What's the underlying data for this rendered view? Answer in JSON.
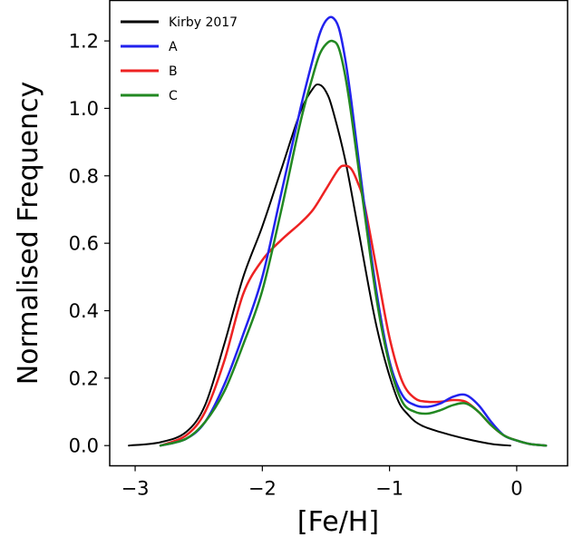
{
  "chart_data": {
    "type": "line",
    "xlabel": "[Fe/H]",
    "ylabel": "Normalised Frequency",
    "xlim": [
      -3.2,
      0.4
    ],
    "ylim": [
      -0.06,
      1.32
    ],
    "grid": false,
    "legend_position": "top-left",
    "x_ticks": [
      {
        "value": -3,
        "label": "−3"
      },
      {
        "value": -2,
        "label": "−2"
      },
      {
        "value": -1,
        "label": "−1"
      },
      {
        "value": 0,
        "label": "0"
      }
    ],
    "y_ticks": [
      {
        "value": 0.0,
        "label": "0.0"
      },
      {
        "value": 0.2,
        "label": "0.2"
      },
      {
        "value": 0.4,
        "label": "0.4"
      },
      {
        "value": 0.6,
        "label": "0.6"
      },
      {
        "value": 0.8,
        "label": "0.8"
      },
      {
        "value": 1.0,
        "label": "1.0"
      },
      {
        "value": 1.2,
        "label": "1.2"
      }
    ],
    "series": [
      {
        "name": "Kirby 2017",
        "color": "#000000",
        "width": 2,
        "x": [
          -3.05,
          -2.8,
          -2.6,
          -2.45,
          -2.3,
          -2.15,
          -2.0,
          -1.85,
          -1.7,
          -1.6,
          -1.55,
          -1.5,
          -1.45,
          -1.35,
          -1.25,
          -1.1,
          -0.95,
          -0.85,
          -0.75,
          -0.6,
          -0.4,
          -0.2,
          -0.05
        ],
        "y": [
          0.0,
          0.01,
          0.04,
          0.12,
          0.3,
          0.5,
          0.65,
          0.82,
          0.99,
          1.06,
          1.07,
          1.05,
          1.0,
          0.85,
          0.65,
          0.35,
          0.15,
          0.09,
          0.06,
          0.04,
          0.02,
          0.005,
          0.0
        ]
      },
      {
        "name": "A",
        "color": "#2222ee",
        "width": 2.5,
        "x": [
          -2.8,
          -2.6,
          -2.45,
          -2.3,
          -2.15,
          -2.0,
          -1.85,
          -1.7,
          -1.6,
          -1.55,
          -1.5,
          -1.45,
          -1.4,
          -1.35,
          -1.3,
          -1.2,
          -1.1,
          -1.0,
          -0.9,
          -0.8,
          -0.7,
          -0.6,
          -0.5,
          -0.4,
          -0.3,
          -0.2,
          -0.1,
          0.0,
          0.1,
          0.23
        ],
        "y": [
          0.0,
          0.02,
          0.07,
          0.18,
          0.33,
          0.5,
          0.75,
          1.0,
          1.15,
          1.22,
          1.26,
          1.27,
          1.24,
          1.15,
          1.02,
          0.72,
          0.45,
          0.25,
          0.15,
          0.12,
          0.115,
          0.125,
          0.145,
          0.15,
          0.12,
          0.07,
          0.03,
          0.015,
          0.005,
          0.0
        ]
      },
      {
        "name": "B",
        "color": "#ee2222",
        "width": 2.5,
        "x": [
          -2.8,
          -2.6,
          -2.45,
          -2.3,
          -2.15,
          -2.0,
          -1.85,
          -1.7,
          -1.6,
          -1.5,
          -1.4,
          -1.35,
          -1.3,
          -1.25,
          -1.2,
          -1.1,
          -1.0,
          -0.9,
          -0.8,
          -0.7,
          -0.6,
          -0.5,
          -0.4,
          -0.3,
          -0.2,
          -0.1,
          0.0,
          0.1,
          0.23
        ],
        "y": [
          0.0,
          0.03,
          0.1,
          0.25,
          0.45,
          0.55,
          0.61,
          0.66,
          0.7,
          0.76,
          0.82,
          0.83,
          0.82,
          0.78,
          0.72,
          0.52,
          0.32,
          0.19,
          0.14,
          0.13,
          0.13,
          0.135,
          0.13,
          0.1,
          0.06,
          0.03,
          0.015,
          0.005,
          0.0
        ]
      },
      {
        "name": "C",
        "color": "#228822",
        "width": 2.5,
        "x": [
          -2.8,
          -2.6,
          -2.45,
          -2.3,
          -2.15,
          -2.0,
          -1.85,
          -1.7,
          -1.6,
          -1.55,
          -1.5,
          -1.45,
          -1.4,
          -1.35,
          -1.3,
          -1.2,
          -1.1,
          -1.0,
          -0.9,
          -0.8,
          -0.7,
          -0.6,
          -0.5,
          -0.4,
          -0.3,
          -0.2,
          -0.1,
          0.0,
          0.1,
          0.23
        ],
        "y": [
          0.0,
          0.02,
          0.07,
          0.16,
          0.3,
          0.46,
          0.7,
          0.96,
          1.1,
          1.16,
          1.19,
          1.2,
          1.18,
          1.1,
          0.98,
          0.7,
          0.43,
          0.24,
          0.13,
          0.1,
          0.095,
          0.105,
          0.12,
          0.125,
          0.1,
          0.06,
          0.03,
          0.015,
          0.005,
          0.0
        ]
      }
    ]
  }
}
